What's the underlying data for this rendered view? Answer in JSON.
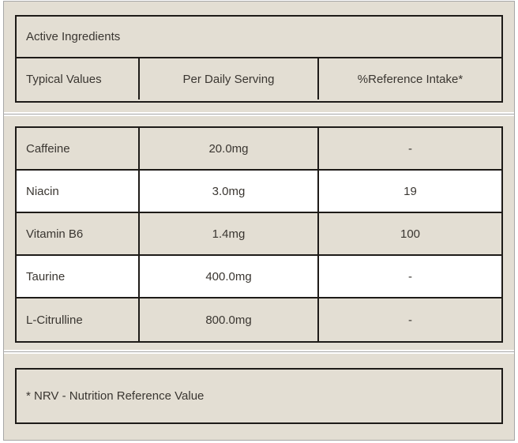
{
  "label": {
    "title": "Active Ingredients",
    "columns": {
      "name": "Typical Values",
      "serving": "Per Daily Serving",
      "reference": "%Reference Intake*"
    },
    "rows": [
      {
        "name": "Caffeine",
        "serving": "20.0mg",
        "reference": "-"
      },
      {
        "name": "Niacin",
        "serving": "3.0mg",
        "reference": "19"
      },
      {
        "name": "Vitamin B6",
        "serving": "1.4mg",
        "reference": "100"
      },
      {
        "name": "Taurine",
        "serving": "400.0mg",
        "reference": "-"
      },
      {
        "name": "L-Citrulline",
        "serving": "800.0mg",
        "reference": "-"
      }
    ],
    "footnote": "* NRV - Nutrition Reference Value"
  },
  "colors": {
    "panel_background": "#e3ded3",
    "row_alternate": "#ffffff",
    "border_dark": "#1e1b18",
    "border_light": "#a6a6a6",
    "text": "#3a3631"
  }
}
